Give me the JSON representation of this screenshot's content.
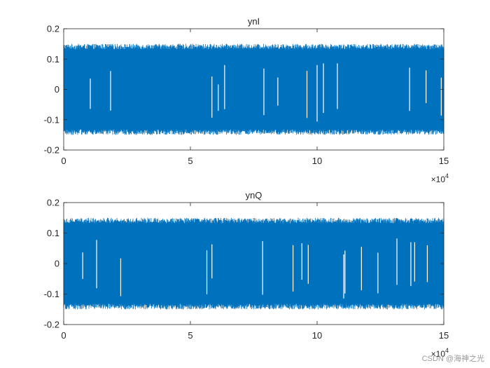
{
  "chart_data": [
    {
      "type": "line",
      "title": "ynI",
      "xlabel": "",
      "ylabel": "",
      "xlim": [
        0,
        150000
      ],
      "ylim": [
        -0.2,
        0.2
      ],
      "x_ticks": [
        0,
        5,
        10,
        15
      ],
      "y_ticks": [
        "-0.2",
        "-0.1",
        "0",
        "0.1",
        "0.2"
      ],
      "x_exponent_label": "×10",
      "x_exponent": "4",
      "grid": false,
      "series": [
        {
          "color": "#0072BD",
          "envelope_max": 0.15,
          "envelope_min": -0.15,
          "points": 150000,
          "gaps_x": [
            10500,
            18500,
            58500,
            61000,
            63500,
            79000,
            84500,
            96000,
            100000,
            102500,
            108000,
            136500,
            143000,
            149000
          ]
        }
      ]
    },
    {
      "type": "line",
      "title": "ynQ",
      "xlabel": "",
      "ylabel": "",
      "xlim": [
        0,
        150000
      ],
      "ylim": [
        -0.2,
        0.2
      ],
      "x_ticks": [
        0,
        5,
        10,
        15
      ],
      "y_ticks": [
        "-0.2",
        "-0.1",
        "0",
        "0.1",
        "0.2"
      ],
      "x_exponent_label": "×10",
      "x_exponent": "4",
      "grid": false,
      "series": [
        {
          "color": "#0072BD",
          "envelope_max": 0.15,
          "envelope_min": -0.15,
          "points": 150000,
          "gaps_x": [
            7500,
            13000,
            22500,
            56500,
            58500,
            78500,
            90500,
            94000,
            96500,
            110500,
            111000,
            117500,
            124000,
            131500,
            137000,
            138500,
            143500
          ]
        }
      ]
    }
  ],
  "watermark": "CSDN @海神之光"
}
